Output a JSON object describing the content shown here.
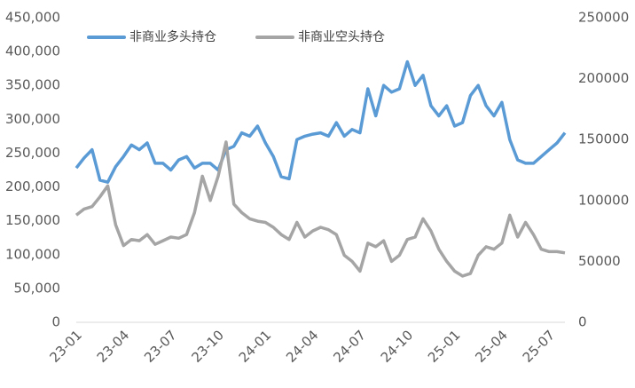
{
  "chart_data": {
    "type": "line",
    "categories": [
      "23-01",
      null,
      null,
      null,
      null,
      null,
      "23-04",
      null,
      null,
      null,
      null,
      null,
      "23-07",
      null,
      null,
      null,
      null,
      null,
      "23-10",
      null,
      null,
      null,
      null,
      null,
      "24-01",
      null,
      null,
      null,
      null,
      null,
      "24-04",
      null,
      null,
      null,
      null,
      null,
      "24-07",
      null,
      null,
      null,
      null,
      null,
      "24-10",
      null,
      null,
      null,
      null,
      null,
      "25-01",
      null,
      null,
      null,
      null,
      null,
      "25-04",
      null,
      null,
      null,
      null,
      null,
      "25-07",
      null,
      null
    ],
    "series": [
      {
        "name": "非商业多头持仓",
        "color": "#5b9bd5",
        "axis": "y",
        "values": [
          228000,
          243000,
          255000,
          210000,
          207000,
          230000,
          245000,
          262000,
          255000,
          265000,
          235000,
          235000,
          225000,
          240000,
          245000,
          228000,
          235000,
          235000,
          225000,
          255000,
          260000,
          280000,
          275000,
          290000,
          265000,
          245000,
          215000,
          212000,
          270000,
          275000,
          278000,
          280000,
          275000,
          295000,
          275000,
          285000,
          280000,
          345000,
          305000,
          350000,
          340000,
          345000,
          385000,
          350000,
          365000,
          320000,
          305000,
          320000,
          290000,
          295000,
          335000,
          350000,
          320000,
          305000,
          325000,
          270000,
          240000,
          235000,
          235000,
          245000,
          255000,
          265000,
          280000
        ]
      },
      {
        "name": "非商业空头持仓",
        "color": "#a5a5a5",
        "axis": "y2",
        "values": [
          88000,
          93000,
          95000,
          103000,
          112000,
          80000,
          63000,
          68000,
          67000,
          72000,
          64000,
          67000,
          70000,
          69000,
          72000,
          90000,
          120000,
          100000,
          120000,
          148000,
          97000,
          90000,
          85000,
          83000,
          82000,
          78000,
          72000,
          68000,
          82000,
          70000,
          75000,
          78000,
          76000,
          72000,
          55000,
          50000,
          42000,
          65000,
          62000,
          67000,
          50000,
          55000,
          68000,
          70000,
          85000,
          75000,
          60000,
          50000,
          42000,
          38000,
          40000,
          55000,
          62000,
          60000,
          65000,
          88000,
          70000,
          82000,
          72000,
          60000,
          58000,
          58000,
          57000
        ]
      }
    ],
    "ylim": [
      0,
      450000
    ],
    "yticks": [
      0,
      {
        "value": 50000,
        "label": "50,000"
      },
      {
        "value": 100000,
        "label": "100,000"
      },
      {
        "value": 150000,
        "label": "150,000"
      },
      {
        "value": 200000,
        "label": "200,000"
      },
      {
        "value": 250000,
        "label": "250,000"
      },
      {
        "value": 300000,
        "label": "300,000"
      },
      {
        "value": 350000,
        "label": "350,000"
      },
      {
        "value": 400000,
        "label": "400,000"
      },
      {
        "value": 450000,
        "label": "450,000"
      }
    ],
    "y2lim": [
      0,
      250000
    ],
    "y2ticks": [
      0,
      50000,
      100000,
      150000,
      200000,
      250000
    ],
    "legend": "top-left",
    "grid": false
  }
}
